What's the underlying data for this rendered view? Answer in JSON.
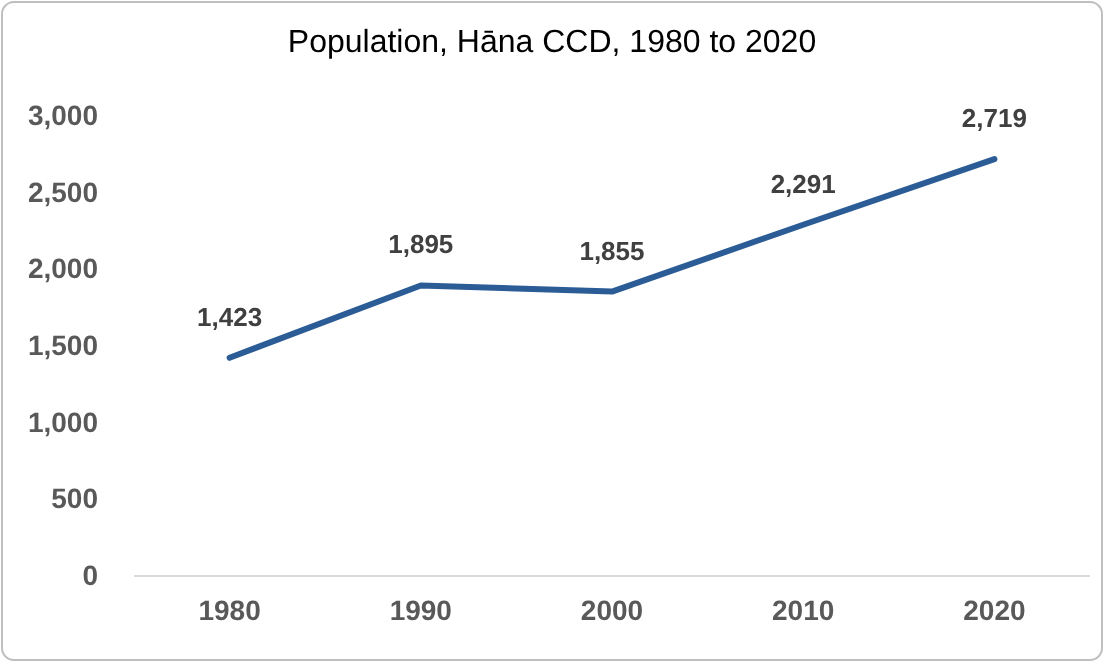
{
  "chart_data": {
    "type": "line",
    "title": "Population, Hāna CCD, 1980 to 2020",
    "categories": [
      "1980",
      "1990",
      "2000",
      "2010",
      "2020"
    ],
    "series": [
      {
        "color": "#2b5c96",
        "values": [
          1423,
          1895,
          1855,
          2291,
          2719
        ],
        "value_labels": [
          "1,423",
          "1,895",
          "1,855",
          "2,291",
          "2,719"
        ]
      }
    ],
    "ylim": [
      0,
      3000
    ],
    "yticks": [
      {
        "value": 0,
        "label": "0"
      },
      {
        "value": 500,
        "label": "500"
      },
      {
        "value": 1000,
        "label": "1,000"
      },
      {
        "value": 1500,
        "label": "1,500"
      },
      {
        "value": 2000,
        "label": "2,000"
      },
      {
        "value": 2500,
        "label": "2,500"
      },
      {
        "value": 3000,
        "label": "3,000"
      }
    ],
    "grid": false,
    "marker": "none",
    "line_style": "solid"
  }
}
